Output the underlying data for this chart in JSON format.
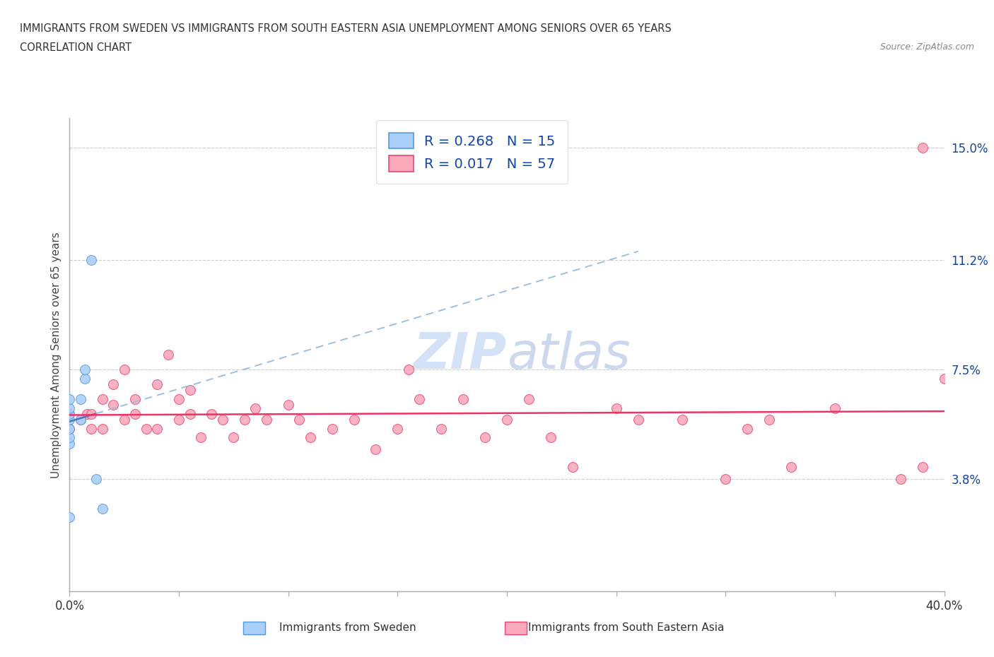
{
  "title_line1": "IMMIGRANTS FROM SWEDEN VS IMMIGRANTS FROM SOUTH EASTERN ASIA UNEMPLOYMENT AMONG SENIORS OVER 65 YEARS",
  "title_line2": "CORRELATION CHART",
  "source": "Source: ZipAtlas.com",
  "ylabel": "Unemployment Among Seniors over 65 years",
  "xlim": [
    0.0,
    0.4
  ],
  "ylim": [
    0.0,
    0.16
  ],
  "R_sweden": 0.268,
  "N_sweden": 15,
  "R_sea": 0.017,
  "N_sea": 57,
  "sweden_color": "#aacffa",
  "sea_color": "#f9aabb",
  "sweden_edge_color": "#5599dd",
  "sea_edge_color": "#ee4477",
  "sweden_line_color": "#4477bb",
  "sea_line_color": "#ee3366",
  "watermark_color": "#ccddf5",
  "legend_text_color": "#1144aa",
  "sweden_x": [
    0.0,
    0.0,
    0.0,
    0.0,
    0.0,
    0.0,
    0.0,
    0.0,
    0.005,
    0.005,
    0.007,
    0.007,
    0.01,
    0.012,
    0.015
  ],
  "sweden_y": [
    0.05,
    0.052,
    0.055,
    0.058,
    0.06,
    0.062,
    0.065,
    0.025,
    0.058,
    0.065,
    0.072,
    0.075,
    0.112,
    0.038,
    0.028
  ],
  "sea_x": [
    0.0,
    0.0,
    0.005,
    0.008,
    0.01,
    0.01,
    0.015,
    0.015,
    0.02,
    0.02,
    0.025,
    0.025,
    0.03,
    0.03,
    0.035,
    0.04,
    0.04,
    0.045,
    0.05,
    0.05,
    0.055,
    0.055,
    0.06,
    0.065,
    0.07,
    0.075,
    0.08,
    0.085,
    0.09,
    0.1,
    0.105,
    0.11,
    0.12,
    0.13,
    0.14,
    0.15,
    0.155,
    0.16,
    0.17,
    0.18,
    0.19,
    0.2,
    0.21,
    0.22,
    0.23,
    0.25,
    0.26,
    0.28,
    0.3,
    0.31,
    0.32,
    0.33,
    0.35,
    0.38,
    0.39,
    0.39,
    0.4
  ],
  "sea_y": [
    0.055,
    0.06,
    0.058,
    0.06,
    0.055,
    0.06,
    0.065,
    0.055,
    0.07,
    0.063,
    0.058,
    0.075,
    0.065,
    0.06,
    0.055,
    0.07,
    0.055,
    0.08,
    0.065,
    0.058,
    0.068,
    0.06,
    0.052,
    0.06,
    0.058,
    0.052,
    0.058,
    0.062,
    0.058,
    0.063,
    0.058,
    0.052,
    0.055,
    0.058,
    0.048,
    0.055,
    0.075,
    0.065,
    0.055,
    0.065,
    0.052,
    0.058,
    0.065,
    0.052,
    0.042,
    0.062,
    0.058,
    0.058,
    0.038,
    0.055,
    0.058,
    0.042,
    0.062,
    0.038,
    0.15,
    0.042,
    0.072
  ],
  "ytick_vals": [
    0.038,
    0.075,
    0.112,
    0.15
  ],
  "ytick_labels": [
    "3.8%",
    "7.5%",
    "11.2%",
    "15.0%"
  ],
  "xtick_positions": [
    0.0,
    0.05,
    0.1,
    0.15,
    0.2,
    0.25,
    0.3,
    0.35,
    0.4
  ],
  "hgrid_vals": [
    0.038,
    0.075,
    0.112,
    0.15
  ]
}
